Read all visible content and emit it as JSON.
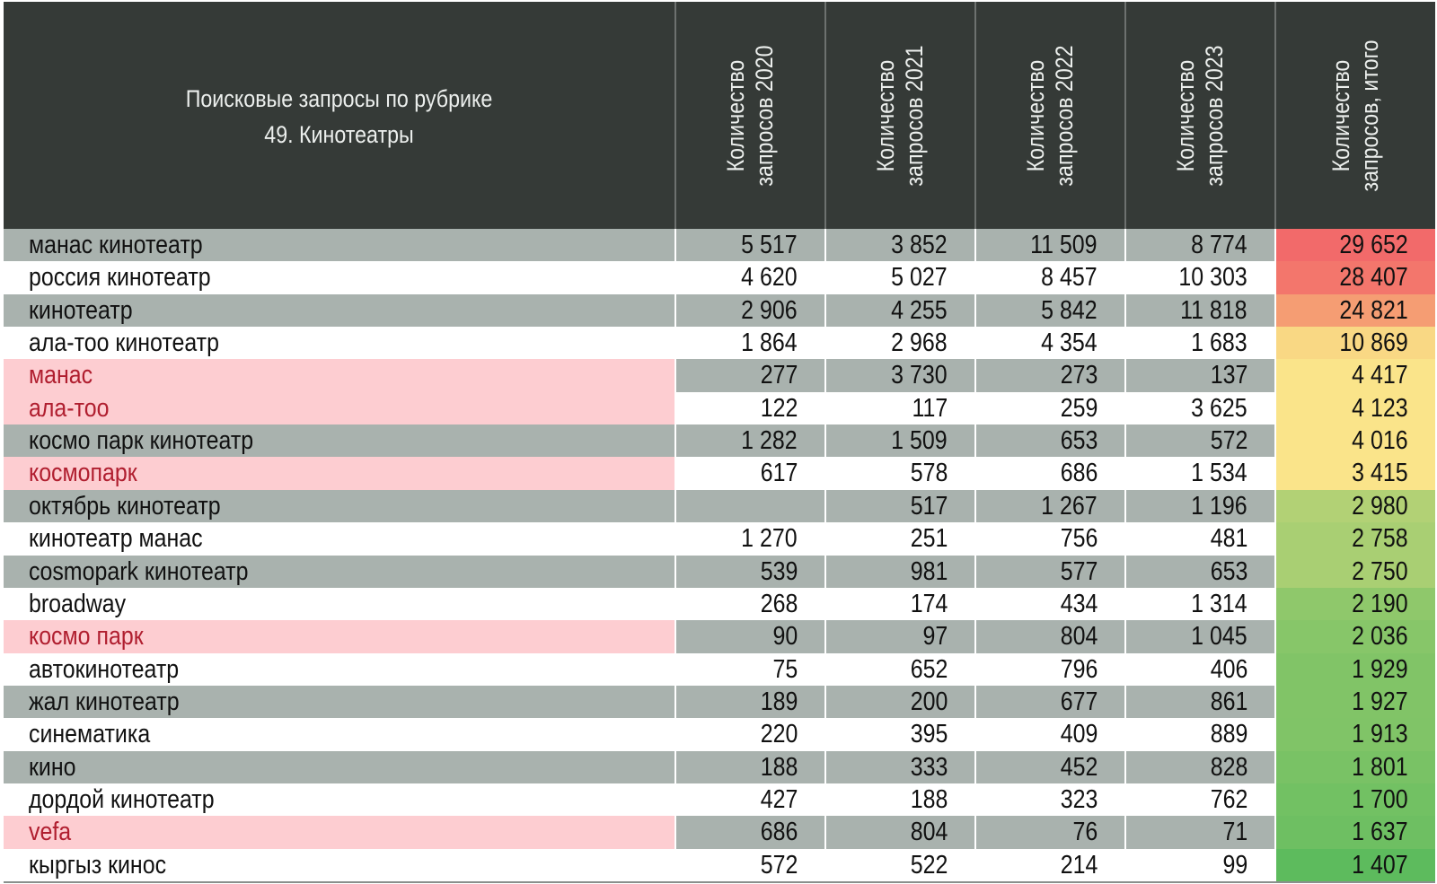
{
  "table": {
    "title_line1": "Поисковые запросы по рубрике",
    "title_line2": "49. Кинотеатры",
    "columns": [
      {
        "line1": "Количество",
        "line2": "запросов 2020"
      },
      {
        "line1": "Количество",
        "line2": "запросов 2021"
      },
      {
        "line1": "Количество",
        "line2": "запросов 2022"
      },
      {
        "line1": "Количество",
        "line2": "запросов 2023"
      },
      {
        "line1": "Количество",
        "line2": "запросов, итого"
      }
    ],
    "colors": {
      "header_bg": "#353a37",
      "stripe_gray": "#a9b2ae",
      "row_white": "#ffffff",
      "brand_highlight": "#fdcdd1",
      "brand_text": "#b01e2f",
      "total_scale": [
        "#f26a6a",
        "#f7c17a",
        "#fae48a",
        "#5dbb5d"
      ]
    },
    "rows": [
      {
        "name": "манас кинотеатр",
        "y2020": "5 517",
        "y2021": "3 852",
        "y2022": "11 509",
        "y2023": "8 774",
        "total": "29 652",
        "total_value": 29652,
        "stripe": true,
        "brand": false
      },
      {
        "name": "россия кинотеатр",
        "y2020": "4 620",
        "y2021": "5 027",
        "y2022": "8 457",
        "y2023": "10 303",
        "total": "28 407",
        "total_value": 28407,
        "stripe": false,
        "brand": false
      },
      {
        "name": "кинотеатр",
        "y2020": "2 906",
        "y2021": "4 255",
        "y2022": "5 842",
        "y2023": "11 818",
        "total": "24 821",
        "total_value": 24821,
        "stripe": true,
        "brand": false
      },
      {
        "name": "ала-тоо кинотеатр",
        "y2020": "1 864",
        "y2021": "2 968",
        "y2022": "4 354",
        "y2023": "1 683",
        "total": "10 869",
        "total_value": 10869,
        "stripe": false,
        "brand": false
      },
      {
        "name": "манас",
        "y2020": "277",
        "y2021": "3 730",
        "y2022": "273",
        "y2023": "137",
        "total": "4 417",
        "total_value": 4417,
        "stripe": true,
        "brand": true
      },
      {
        "name": "ала-тоо",
        "y2020": "122",
        "y2021": "117",
        "y2022": "259",
        "y2023": "3 625",
        "total": "4 123",
        "total_value": 4123,
        "stripe": false,
        "brand": true
      },
      {
        "name": "космо парк кинотеатр",
        "y2020": "1 282",
        "y2021": "1 509",
        "y2022": "653",
        "y2023": "572",
        "total": "4 016",
        "total_value": 4016,
        "stripe": true,
        "brand": false
      },
      {
        "name": "космопарк",
        "y2020": "617",
        "y2021": "578",
        "y2022": "686",
        "y2023": "1 534",
        "total": "3 415",
        "total_value": 3415,
        "stripe": false,
        "brand": true
      },
      {
        "name": "октябрь кинотеатр",
        "y2020": "",
        "y2021": "517",
        "y2022": "1 267",
        "y2023": "1 196",
        "total": "2 980",
        "total_value": 2980,
        "stripe": true,
        "brand": false
      },
      {
        "name": "кинотеатр манас",
        "y2020": "1 270",
        "y2021": "251",
        "y2022": "756",
        "y2023": "481",
        "total": "2 758",
        "total_value": 2758,
        "stripe": false,
        "brand": false
      },
      {
        "name": "cosmopark кинотеатр",
        "y2020": "539",
        "y2021": "981",
        "y2022": "577",
        "y2023": "653",
        "total": "2 750",
        "total_value": 2750,
        "stripe": true,
        "brand": false
      },
      {
        "name": "broadway",
        "y2020": "268",
        "y2021": "174",
        "y2022": "434",
        "y2023": "1 314",
        "total": "2 190",
        "total_value": 2190,
        "stripe": false,
        "brand": false
      },
      {
        "name": "космо парк",
        "y2020": "90",
        "y2021": "97",
        "y2022": "804",
        "y2023": "1 045",
        "total": "2 036",
        "total_value": 2036,
        "stripe": true,
        "brand": true
      },
      {
        "name": "автокинотеатр",
        "y2020": "75",
        "y2021": "652",
        "y2022": "796",
        "y2023": "406",
        "total": "1 929",
        "total_value": 1929,
        "stripe": false,
        "brand": false
      },
      {
        "name": "жал кинотеатр",
        "y2020": "189",
        "y2021": "200",
        "y2022": "677",
        "y2023": "861",
        "total": "1 927",
        "total_value": 1927,
        "stripe": true,
        "brand": false
      },
      {
        "name": "синематика",
        "y2020": "220",
        "y2021": "395",
        "y2022": "409",
        "y2023": "889",
        "total": "1 913",
        "total_value": 1913,
        "stripe": false,
        "brand": false
      },
      {
        "name": "кино",
        "y2020": "188",
        "y2021": "333",
        "y2022": "452",
        "y2023": "828",
        "total": "1 801",
        "total_value": 1801,
        "stripe": true,
        "brand": false
      },
      {
        "name": "дордой кинотеатр",
        "y2020": "427",
        "y2021": "188",
        "y2022": "323",
        "y2023": "762",
        "total": "1 700",
        "total_value": 1700,
        "stripe": false,
        "brand": false
      },
      {
        "name": "vefa",
        "y2020": "686",
        "y2021": "804",
        "y2022": "76",
        "y2023": "71",
        "total": "1 637",
        "total_value": 1637,
        "stripe": true,
        "brand": true
      },
      {
        "name": "кыргыз кинос",
        "y2020": "572",
        "y2021": "522",
        "y2022": "214",
        "y2023": "99",
        "total": "1 407",
        "total_value": 1407,
        "stripe": false,
        "brand": false
      }
    ]
  }
}
